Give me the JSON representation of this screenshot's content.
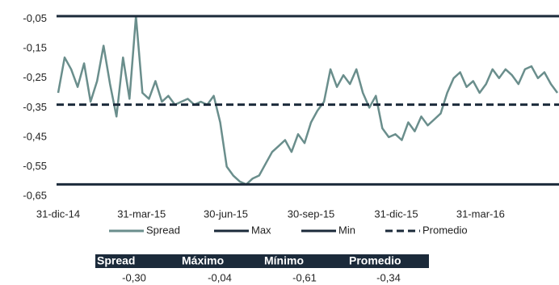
{
  "chart_data": {
    "type": "line",
    "x": [
      "2014-12-31",
      "2015-01-07",
      "2015-01-14",
      "2015-01-21",
      "2015-01-28",
      "2015-02-04",
      "2015-02-11",
      "2015-02-18",
      "2015-02-25",
      "2015-03-04",
      "2015-03-11",
      "2015-03-18",
      "2015-03-25",
      "2015-04-01",
      "2015-04-08",
      "2015-04-15",
      "2015-04-22",
      "2015-04-29",
      "2015-05-06",
      "2015-05-13",
      "2015-05-20",
      "2015-05-27",
      "2015-06-03",
      "2015-06-10",
      "2015-06-17",
      "2015-06-24",
      "2015-07-01",
      "2015-07-08",
      "2015-07-15",
      "2015-07-22",
      "2015-07-29",
      "2015-08-05",
      "2015-08-12",
      "2015-08-19",
      "2015-08-26",
      "2015-09-02",
      "2015-09-09",
      "2015-09-16",
      "2015-09-23",
      "2015-09-30",
      "2015-10-07",
      "2015-10-14",
      "2015-10-21",
      "2015-10-28",
      "2015-11-04",
      "2015-11-11",
      "2015-11-18",
      "2015-11-25",
      "2015-12-02",
      "2015-12-09",
      "2015-12-16",
      "2015-12-23",
      "2015-12-30",
      "2016-01-06",
      "2016-01-13",
      "2016-01-20",
      "2016-01-27",
      "2016-02-03",
      "2016-02-10",
      "2016-02-17",
      "2016-02-24",
      "2016-03-02",
      "2016-03-09",
      "2016-03-16",
      "2016-03-23",
      "2016-03-30",
      "2016-04-06",
      "2016-04-13",
      "2016-04-20",
      "2016-04-27",
      "2016-05-04",
      "2016-05-11",
      "2016-05-18",
      "2016-05-25",
      "2016-06-01",
      "2016-06-08",
      "2016-06-15",
      "2016-06-22"
    ],
    "series": [
      {
        "name": "Spread",
        "color": "#6a8e8c",
        "values": [
          -0.3,
          -0.18,
          -0.22,
          -0.28,
          -0.2,
          -0.33,
          -0.26,
          -0.14,
          -0.27,
          -0.38,
          -0.18,
          -0.32,
          -0.04,
          -0.3,
          -0.32,
          -0.26,
          -0.33,
          -0.31,
          -0.34,
          -0.33,
          -0.32,
          -0.34,
          -0.33,
          -0.34,
          -0.31,
          -0.4,
          -0.55,
          -0.58,
          -0.6,
          -0.61,
          -0.59,
          -0.58,
          -0.54,
          -0.5,
          -0.48,
          -0.46,
          -0.5,
          -0.44,
          -0.47,
          -0.4,
          -0.36,
          -0.33,
          -0.22,
          -0.28,
          -0.24,
          -0.27,
          -0.22,
          -0.3,
          -0.35,
          -0.31,
          -0.42,
          -0.45,
          -0.44,
          -0.46,
          -0.4,
          -0.43,
          -0.38,
          -0.41,
          -0.39,
          -0.37,
          -0.3,
          -0.25,
          -0.23,
          -0.28,
          -0.26,
          -0.3,
          -0.27,
          -0.22,
          -0.25,
          -0.22,
          -0.24,
          -0.27,
          -0.22,
          -0.21,
          -0.25,
          -0.23,
          -0.27,
          -0.3
        ]
      },
      {
        "name": "Max",
        "color": "#1b2a3a",
        "value": -0.04,
        "dashed": false
      },
      {
        "name": "Min",
        "color": "#1b2a3a",
        "value": -0.61,
        "dashed": false
      },
      {
        "name": "Promedio",
        "color": "#1b2a3a",
        "value": -0.34,
        "dashed": true
      }
    ],
    "xlim": [
      "2014-12-31",
      "2016-06-22"
    ],
    "xticks": [
      {
        "value": "2014-12-31",
        "label": "31-dic-14"
      },
      {
        "value": "2015-03-31",
        "label": "31-mar-15"
      },
      {
        "value": "2015-06-30",
        "label": "30-jun-15"
      },
      {
        "value": "2015-09-30",
        "label": "30-sep-15"
      },
      {
        "value": "2015-12-31",
        "label": "31-dic-15"
      },
      {
        "value": "2016-03-31",
        "label": "31-mar-16"
      }
    ],
    "ylim": [
      -0.65,
      -0.04
    ],
    "yticks": [
      {
        "value": -0.05,
        "label": "-0,05"
      },
      {
        "value": -0.15,
        "label": "-0,15"
      },
      {
        "value": -0.25,
        "label": "-0,25"
      },
      {
        "value": -0.35,
        "label": "-0,35"
      },
      {
        "value": -0.45,
        "label": "-0,45"
      },
      {
        "value": -0.55,
        "label": "-0,55"
      },
      {
        "value": -0.65,
        "label": "-0,65"
      }
    ],
    "grid": false
  },
  "table": {
    "columns": [
      "Spread",
      "Máximo",
      "Mínimo",
      "Promedio"
    ],
    "rows": [
      [
        "-0,30",
        "-0,04",
        "-0,61",
        "-0,34"
      ]
    ],
    "header_color": "#1b2a3a"
  }
}
